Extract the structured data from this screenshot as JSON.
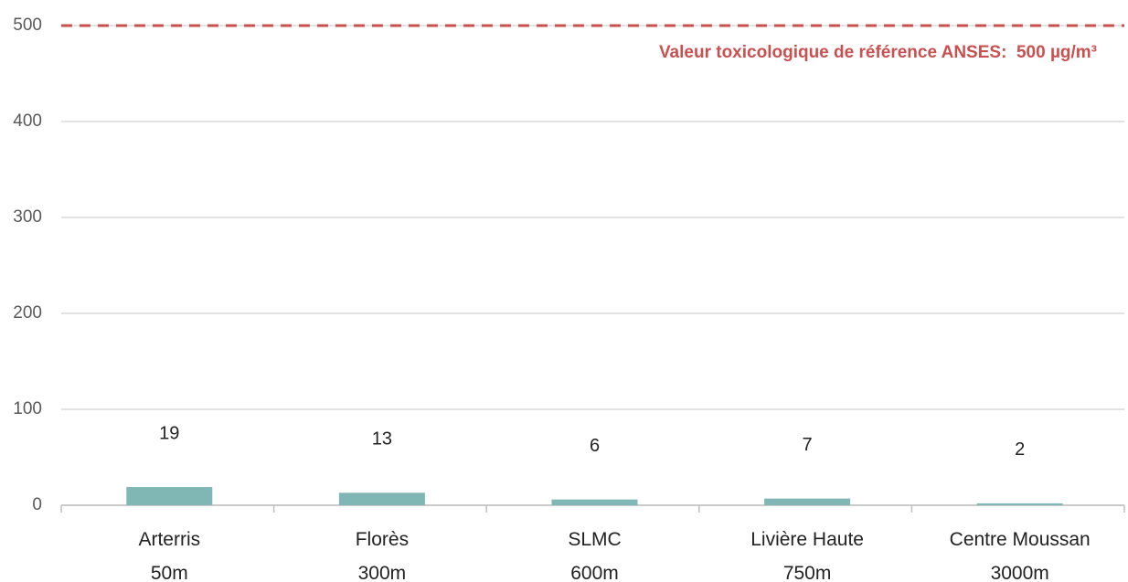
{
  "chart_data": {
    "type": "bar",
    "categories": [
      "Arterris\n50m",
      "Florès\n300m",
      "SLMC\n600m",
      "Livière Haute\n750m",
      "Centre Moussan\n3000m"
    ],
    "values": [
      19,
      13,
      6,
      7,
      2
    ],
    "color": "#80b7b5",
    "ylim": [
      0,
      500
    ],
    "yticks": [
      0,
      100,
      200,
      300,
      400,
      500
    ],
    "grid": true,
    "reference_line": {
      "value": 500,
      "label": "Valeur toxicologique de référence ANSES:  500 µg/m³",
      "color": "#c9504f"
    }
  }
}
